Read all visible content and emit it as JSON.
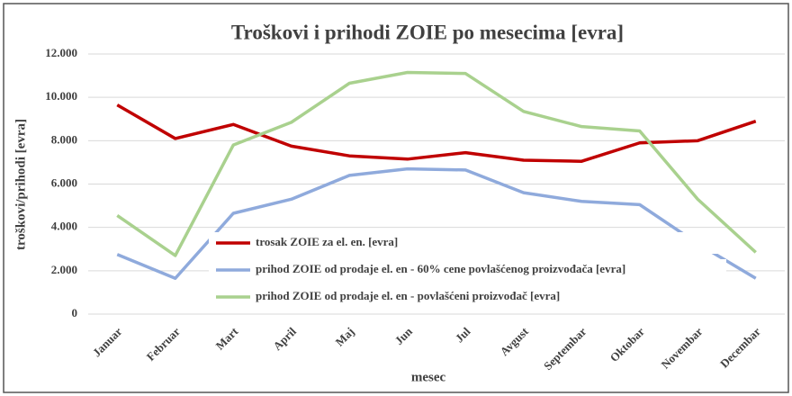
{
  "chart_data": {
    "type": "line",
    "title": "Troškovi i prihodi ZOIE po mesecima [evra]",
    "x_label": "mesec",
    "y_label": "troškovi/prihodi [evra]",
    "categories": [
      "Januar",
      "Februar",
      "Mart",
      "April",
      "Maj",
      "Jun",
      "Jul",
      "Avgust",
      "Septembar",
      "Oktobar",
      "Novembar",
      "Decembar"
    ],
    "series": [
      {
        "name": "trosak ZOIE za el. en. [evra]",
        "color": "#c00000",
        "values": [
          9650,
          8100,
          8750,
          7750,
          7300,
          7150,
          7450,
          7100,
          7050,
          7900,
          8000,
          8900
        ]
      },
      {
        "name": "prihod ZOIE od prodaje el. en - 60% cene povlašćenog proizvođača [evra]",
        "color": "#8faadc",
        "values": [
          2750,
          1650,
          4650,
          5300,
          6400,
          6700,
          6650,
          5600,
          5200,
          5050,
          3250,
          1650
        ]
      },
      {
        "name": "prihod ZOIE od prodaje el. en - povlašćeni proizvođač [evra]",
        "color": "#a9d18e",
        "values": [
          4550,
          2700,
          7800,
          8850,
          10650,
          11150,
          11100,
          9350,
          8650,
          8450,
          5300,
          2850
        ]
      }
    ],
    "ylim": [
      0,
      12000
    ],
    "yticks": [
      0,
      {
        "value": 2000,
        "label": "2.000"
      },
      {
        "value": 4000,
        "label": "4.000"
      },
      {
        "value": 6000,
        "label": "6.000"
      },
      {
        "value": 8000,
        "label": "8.000"
      },
      {
        "value": 10000,
        "label": "10.000"
      },
      {
        "value": 12000,
        "label": "12.000"
      }
    ],
    "grid": true,
    "legend": "lower-left"
  }
}
